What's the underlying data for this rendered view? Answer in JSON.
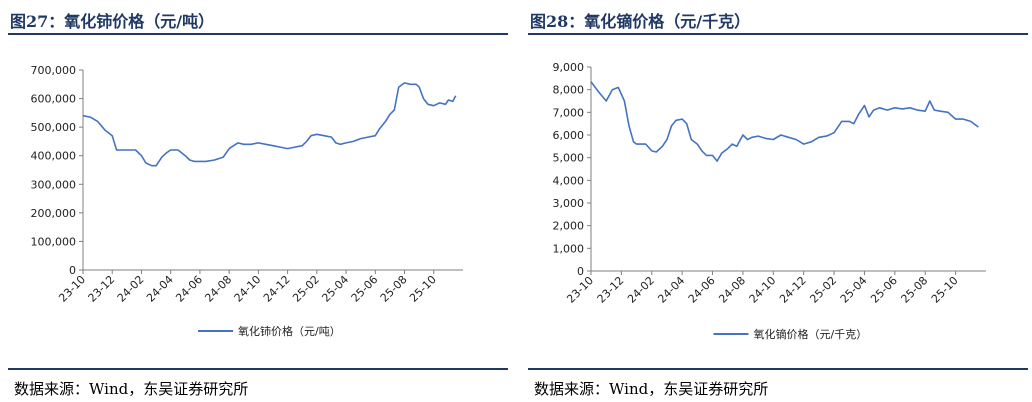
{
  "figures": [
    {
      "title": "图27：氧化铈价格（元/吨）",
      "source": "数据来源：Wind，东吴证券研究所"
    },
    {
      "title": "图28：氧化镝价格（元/千克）",
      "source": "数据来源：Wind，东吴证券研究所"
    }
  ],
  "colors": {
    "line": "#4472c4",
    "rule": "#1f3864",
    "axis": "#7f7f7f"
  },
  "chart_data": [
    {
      "type": "line",
      "title": "",
      "xlabel": "",
      "ylabel": "",
      "ylim": [
        0,
        700000
      ],
      "yticks": [
        0,
        100000,
        200000,
        300000,
        400000,
        500000,
        600000,
        700000
      ],
      "ytick_labels": [
        "0",
        "100,000",
        "200,000",
        "300,000",
        "400,000",
        "500,000",
        "600,000",
        "700,000"
      ],
      "xlim": [
        "23-10",
        "25-12"
      ],
      "xtick_labels": [
        "23-10",
        "23-12",
        "24-02",
        "24-04",
        "24-06",
        "24-08",
        "24-10",
        "24-12",
        "25-02",
        "25-04",
        "25-06",
        "25-08",
        "25-10"
      ],
      "grid": false,
      "legend_position": "bottom-center",
      "series": [
        {
          "name": "氧化铈价格（元/吨）",
          "x": [
            "23-10",
            "23-10.5",
            "23-11",
            "23-11.5",
            "23-12",
            "23-12.3",
            "24-01",
            "24-01.6",
            "24-02",
            "24-02.3",
            "24-02.7",
            "24-03",
            "24-03.4",
            "24-03.7",
            "24-04",
            "24-04.5",
            "24-05",
            "24-05.3",
            "24-05.6",
            "24-06",
            "24-06.4",
            "24-07",
            "24-07.6",
            "24-08",
            "24-08.3",
            "24-08.6",
            "24-09",
            "24-09.5",
            "24-10",
            "24-10.5",
            "24-11",
            "24-11.5",
            "24-12",
            "24-12.5",
            "25-01",
            "25-01.3",
            "25-01.6",
            "25-02",
            "25-02.5",
            "25-03",
            "25-03.3",
            "25-03.6",
            "25-04",
            "25-04.5",
            "25-05",
            "25-05.5",
            "25-06",
            "25-06.3",
            "25-06.7",
            "25-07",
            "25-07.3",
            "25-07.6",
            "25-08",
            "25-08.4",
            "25-08.8",
            "25-09",
            "25-09.3",
            "25-09.6",
            "25-10",
            "25-10.4",
            "25-10.8",
            "25-11",
            "25-11.3",
            "25-11.5"
          ],
          "values": [
            540000,
            535000,
            520000,
            490000,
            470000,
            420000,
            420000,
            420000,
            400000,
            375000,
            365000,
            365000,
            395000,
            410000,
            420000,
            420000,
            400000,
            385000,
            380000,
            380000,
            380000,
            385000,
            395000,
            425000,
            435000,
            445000,
            440000,
            440000,
            445000,
            440000,
            435000,
            430000,
            425000,
            430000,
            435000,
            450000,
            470000,
            475000,
            470000,
            465000,
            445000,
            440000,
            445000,
            450000,
            460000,
            465000,
            470000,
            495000,
            520000,
            545000,
            560000,
            640000,
            655000,
            650000,
            650000,
            640000,
            600000,
            580000,
            575000,
            585000,
            580000,
            595000,
            590000,
            610000
          ]
        }
      ]
    },
    {
      "type": "line",
      "title": "",
      "xlabel": "",
      "ylabel": "",
      "ylim": [
        0,
        9000
      ],
      "yticks": [
        0,
        1000,
        2000,
        3000,
        4000,
        5000,
        6000,
        7000,
        8000,
        9000
      ],
      "ytick_labels": [
        "0",
        "1,000",
        "2,000",
        "3,000",
        "4,000",
        "5,000",
        "6,000",
        "7,000",
        "8,000",
        "9,000"
      ],
      "xlim": [
        "23-10",
        "25-12"
      ],
      "xtick_labels": [
        "23-10",
        "23-12",
        "24-02",
        "24-04",
        "24-06",
        "24-08",
        "24-10",
        "24-12",
        "25-02",
        "25-04",
        "25-06",
        "25-08",
        "25-10"
      ],
      "grid": false,
      "legend_position": "bottom-center",
      "series": [
        {
          "name": "氧化镝价格（元/千克）",
          "x": [
            "23-10",
            "23-10.5",
            "23-11",
            "23-11.4",
            "23-11.8",
            "23-12.2",
            "23-12.5",
            "23-12.8",
            "24-01",
            "24-01.3",
            "24-01.6",
            "24-02",
            "24-02.3",
            "24-02.7",
            "24-03",
            "24-03.3",
            "24-03.6",
            "24-04",
            "24-04.3",
            "24-04.6",
            "24-05",
            "24-05.3",
            "24-05.6",
            "24-06",
            "24-06.3",
            "24-06.6",
            "24-07",
            "24-07.3",
            "24-07.6",
            "24-08",
            "24-08.3",
            "24-08.6",
            "24-09",
            "24-09.5",
            "24-10",
            "24-10.5",
            "24-11",
            "24-11.5",
            "24-12",
            "24-12.5",
            "25-01",
            "25-01.5",
            "25-02",
            "25-02.5",
            "25-03",
            "25-03.3",
            "25-03.6",
            "25-04",
            "25-04.3",
            "25-04.6",
            "25-05",
            "25-05.5",
            "25-06",
            "25-06.5",
            "25-07",
            "25-07.5",
            "25-08",
            "25-08.3",
            "25-08.6",
            "25-09",
            "25-09.5",
            "25-10",
            "25-10.5",
            "25-11",
            "25-11.5"
          ],
          "values": [
            8350,
            7900,
            7500,
            8000,
            8100,
            7500,
            6400,
            5700,
            5600,
            5600,
            5600,
            5300,
            5250,
            5500,
            5800,
            6400,
            6650,
            6700,
            6500,
            5800,
            5600,
            5300,
            5100,
            5100,
            4850,
            5200,
            5400,
            5600,
            5500,
            6000,
            5800,
            5900,
            5950,
            5850,
            5800,
            6000,
            5900,
            5800,
            5600,
            5700,
            5900,
            5950,
            6100,
            6600,
            6600,
            6500,
            6900,
            7300,
            6800,
            7100,
            7200,
            7100,
            7200,
            7150,
            7200,
            7100,
            7050,
            7500,
            7100,
            7050,
            7000,
            6700,
            6700,
            6600,
            6350
          ]
        }
      ]
    }
  ]
}
